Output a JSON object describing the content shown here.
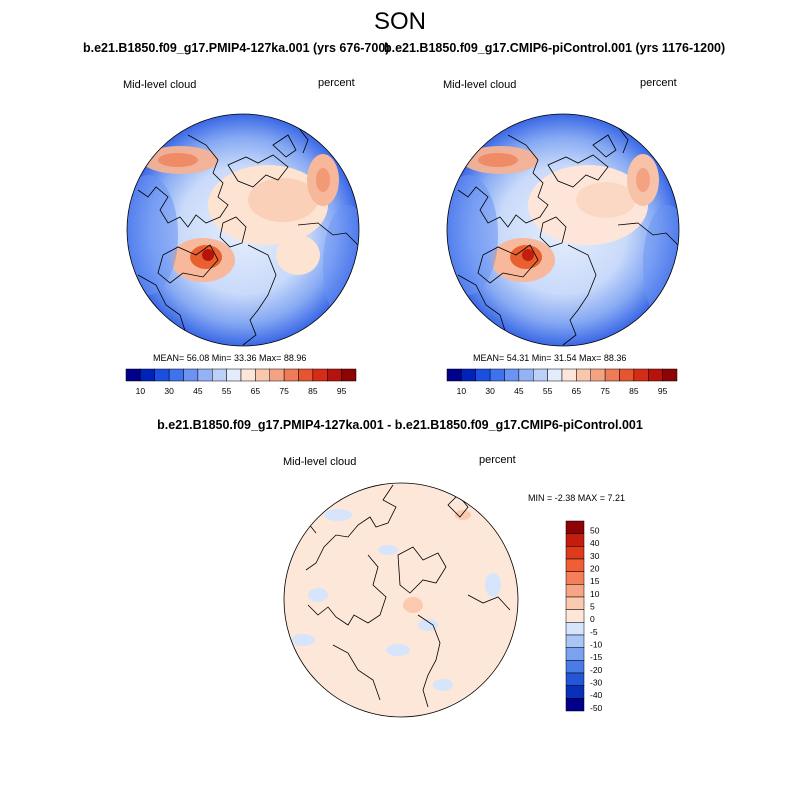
{
  "season": "SON",
  "panels": [
    {
      "title": "b.e21.B1850.f09_g17.PMIP4-127ka.001 (yrs 676-700)",
      "left_label": "Mid-level cloud",
      "right_label": "percent",
      "stats": "MEAN=  56.08  Min=  33.36  Max=  88.96"
    },
    {
      "title": "b.e21.B1850.f09_g17.CMIP6-piControl.001 (yrs 1176-1200)",
      "left_label": "Mid-level cloud",
      "right_label": "percent",
      "stats": "MEAN=  54.31  Min=  31.54  Max=  88.36"
    }
  ],
  "diff_panel": {
    "title": "b.e21.B1850.f09_g17.PMIP4-127ka.001 - b.e21.B1850.f09_g17.CMIP6-piControl.001",
    "left_label": "Mid-level cloud",
    "right_label": "percent",
    "stats": "MIN =  -2.38 MAX =   7.21"
  },
  "colorbar_abs": {
    "tick_labels": [
      "10",
      "30",
      "45",
      "55",
      "65",
      "75",
      "85",
      "95"
    ],
    "colors": [
      "#00008b",
      "#0022bb",
      "#1a4fe0",
      "#3f72ee",
      "#6a93f4",
      "#94b3f7",
      "#bdd0fa",
      "#e3ecfc",
      "#fde6d9",
      "#f9c7ad",
      "#f4a382",
      "#ef7c58",
      "#e65430",
      "#d42c16",
      "#b5130b",
      "#8e0303"
    ]
  },
  "colorbar_diff": {
    "tick_labels": [
      "50",
      "40",
      "30",
      "20",
      "15",
      "10",
      "5",
      "0",
      "-5",
      "-10",
      "-15",
      "-20",
      "-30",
      "-40",
      "-50"
    ],
    "colors_top_to_bottom": [
      "#8e0303",
      "#c21d0d",
      "#e03a1c",
      "#ef5e35",
      "#f47f58",
      "#f7a586",
      "#fbc9ae",
      "#fde7d8",
      "#d6e5fb",
      "#a9c6f7",
      "#7aa2f0",
      "#4a7ce8",
      "#2456d9",
      "#0a2fb8",
      "#00008b"
    ]
  }
}
